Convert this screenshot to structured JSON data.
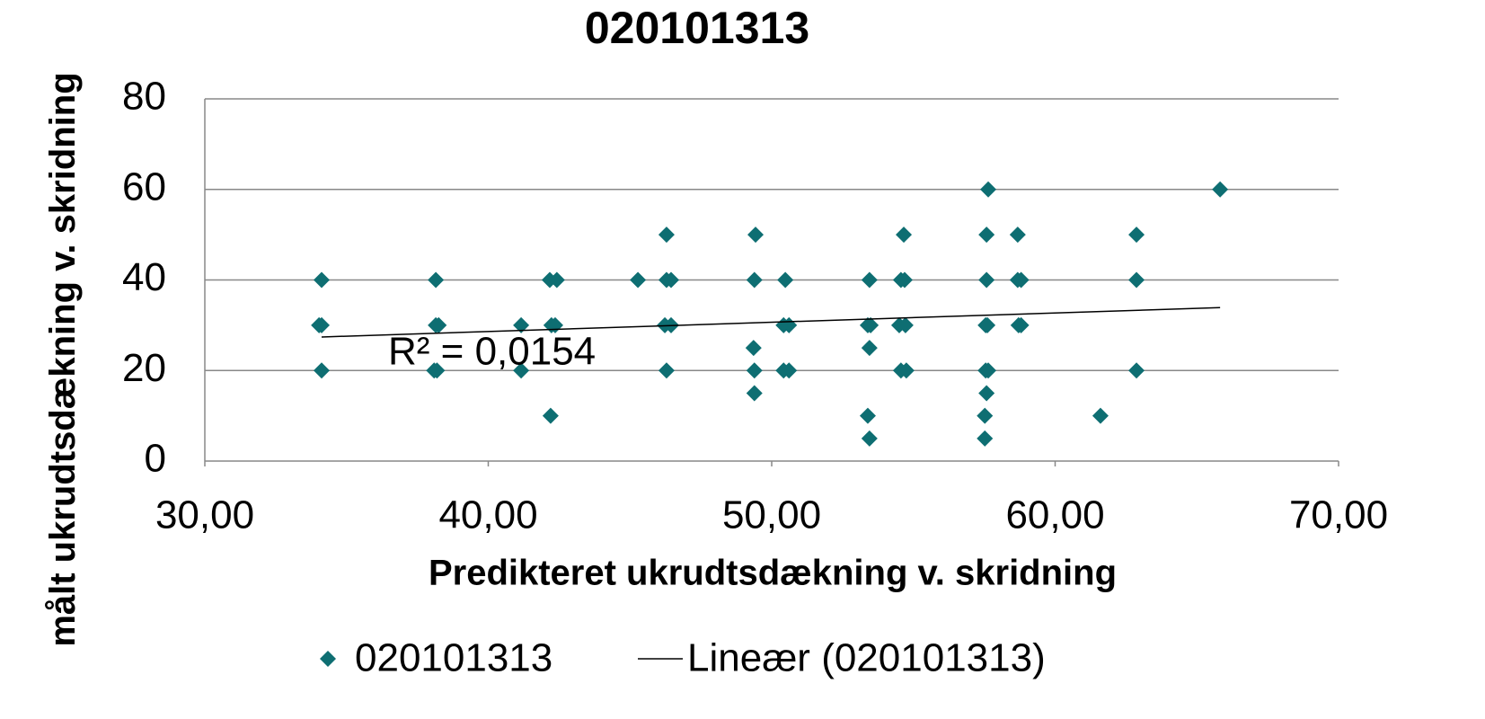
{
  "chart_data": {
    "type": "scatter",
    "title": "020101313",
    "xlabel": "Predikteret ukrudtsdækning v. skridning",
    "ylabel": "målt ukrudtsdækning v. skridning",
    "xlim": [
      30,
      70
    ],
    "xticks": [
      {
        "value": 30,
        "label": "30,00"
      },
      {
        "value": 40,
        "label": "40,00"
      },
      {
        "value": 50,
        "label": "50,00"
      },
      {
        "value": 60,
        "label": "60,00"
      },
      {
        "value": 70,
        "label": "70,00"
      }
    ],
    "ylim": [
      0,
      80
    ],
    "yticks": [
      0,
      20,
      40,
      60,
      80
    ],
    "grid": true,
    "legend": "bottom",
    "series": [
      {
        "name": "020101313",
        "color": "#0e6e72",
        "x": [
          34.12,
          34.03,
          34.12,
          34.12,
          38.15,
          38.15,
          38.25,
          38.09,
          38.19,
          41.16,
          41.16,
          42.17,
          42.42,
          42.23,
          42.36,
          42.2,
          45.28,
          46.29,
          46.29,
          46.45,
          46.23,
          46.45,
          46.29,
          49.43,
          49.39,
          49.36,
          49.39,
          49.39,
          50.48,
          50.42,
          50.61,
          50.42,
          50.61,
          53.45,
          53.39,
          53.49,
          53.45,
          53.39,
          53.45,
          54.66,
          54.56,
          54.69,
          54.5,
          54.72,
          54.56,
          54.75,
          57.64,
          57.58,
          57.58,
          57.55,
          57.61,
          57.55,
          57.64,
          57.58,
          57.52,
          57.52,
          58.68,
          58.68,
          58.8,
          58.71,
          58.8,
          61.6,
          62.87,
          62.87,
          62.87,
          65.82
        ],
        "values": [
          40,
          30,
          30,
          20,
          40,
          30,
          30,
          20,
          20,
          30,
          20,
          40,
          40,
          30,
          30,
          10,
          40,
          50,
          40,
          40,
          30,
          30,
          20,
          50,
          40,
          25,
          20,
          15,
          40,
          30,
          30,
          20,
          20,
          40,
          30,
          30,
          25,
          10,
          5,
          50,
          40,
          40,
          30,
          30,
          20,
          20,
          60,
          50,
          40,
          30,
          30,
          20,
          20,
          15,
          10,
          5,
          50,
          40,
          40,
          30,
          30,
          10,
          50,
          40,
          20,
          60
        ]
      }
    ],
    "trendline": {
      "name": "Lineær (020101313)",
      "color": "#000000",
      "x": [
        34.12,
        65.82
      ],
      "values": [
        27.4,
        33.9
      ]
    },
    "annotation": "R² = 0,0154"
  }
}
